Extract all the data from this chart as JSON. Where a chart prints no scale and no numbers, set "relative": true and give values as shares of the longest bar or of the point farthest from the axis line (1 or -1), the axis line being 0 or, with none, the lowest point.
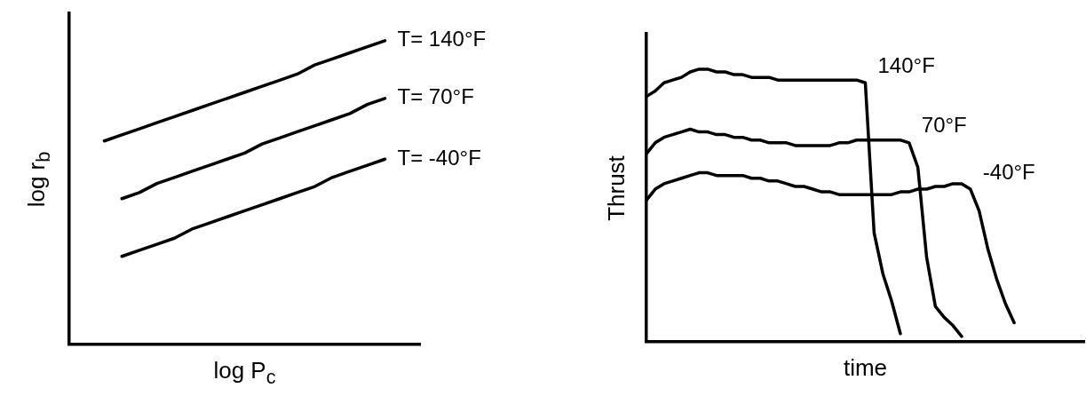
{
  "chart_data": [
    {
      "type": "line",
      "relative": true,
      "xlabel": "log P$_{c}$",
      "ylabel": "log r$_{b}$",
      "tick_labels": false,
      "grid": false,
      "legend": false,
      "marker": "none",
      "line_style": "solid",
      "categories": [
        null,
        null,
        null,
        null,
        null,
        null,
        null,
        null,
        null,
        null,
        null,
        null,
        null,
        null,
        null,
        null,
        null,
        null,
        null,
        null,
        null
      ],
      "series": [
        {
          "name": "T= 140°F",
          "color": "#000000",
          "values": [
            null,
            null,
            0.67,
            0.69,
            0.71,
            0.73,
            0.75,
            0.77,
            0.79,
            0.81,
            0.83,
            0.85,
            0.87,
            0.89,
            0.92,
            0.94,
            0.96,
            0.98,
            1.0,
            null,
            null
          ]
        },
        {
          "name": "T= 70°F",
          "color": "#000000",
          "values": [
            null,
            null,
            null,
            0.48,
            0.5,
            0.53,
            0.55,
            0.57,
            0.59,
            0.61,
            0.63,
            0.66,
            0.68,
            0.7,
            0.72,
            0.74,
            0.76,
            0.79,
            0.81,
            null,
            null
          ]
        },
        {
          "name": "T= -40°F",
          "color": "#000000",
          "values": [
            null,
            null,
            null,
            0.29,
            0.31,
            0.33,
            0.35,
            0.38,
            0.4,
            0.42,
            0.44,
            0.46,
            0.48,
            0.5,
            0.52,
            0.55,
            0.57,
            0.59,
            0.61,
            null,
            null
          ]
        }
      ]
    },
    {
      "type": "line",
      "relative": true,
      "xlabel": "time",
      "ylabel": "Thrust",
      "tick_labels": false,
      "grid": false,
      "legend": false,
      "marker": "none",
      "line_style": "solid",
      "categories": [
        null,
        null,
        null,
        null,
        null,
        null,
        null,
        null,
        null,
        null,
        null,
        null,
        null,
        null,
        null,
        null,
        null,
        null,
        null,
        null,
        null,
        null,
        null,
        null,
        null,
        null,
        null,
        null,
        null,
        null,
        null,
        null,
        null,
        null,
        null,
        null,
        null,
        null,
        null,
        null,
        null,
        null,
        null,
        null,
        null,
        null,
        null,
        null,
        null,
        null,
        null
      ],
      "series": [
        {
          "name": "140°F",
          "color": "#000000",
          "values": [
            0.9,
            0.92,
            0.95,
            0.96,
            0.97,
            0.99,
            1.0,
            1.0,
            0.99,
            0.99,
            0.98,
            0.98,
            0.97,
            0.97,
            0.97,
            0.96,
            0.96,
            0.96,
            0.96,
            0.96,
            0.96,
            0.96,
            0.96,
            0.96,
            0.96,
            0.95,
            0.4,
            0.25,
            0.15,
            0.03,
            null,
            null,
            null,
            null,
            null,
            null,
            null,
            null,
            null,
            null,
            null,
            null,
            null,
            null,
            null,
            null,
            null,
            null,
            null,
            null,
            null
          ]
        },
        {
          "name": "70°F",
          "color": "#000000",
          "values": [
            0.69,
            0.73,
            0.75,
            0.76,
            0.77,
            0.78,
            0.77,
            0.77,
            0.76,
            0.76,
            0.75,
            0.75,
            0.74,
            0.74,
            0.73,
            0.73,
            0.73,
            0.72,
            0.72,
            0.72,
            0.72,
            0.72,
            0.73,
            0.73,
            0.74,
            0.74,
            0.74,
            0.74,
            0.74,
            0.74,
            0.73,
            0.64,
            0.31,
            0.13,
            0.09,
            0.06,
            0.02,
            null,
            null,
            null,
            null,
            null,
            null,
            null,
            null,
            null,
            null,
            null,
            null,
            null,
            null
          ]
        },
        {
          "name": "-40°F",
          "color": "#000000",
          "values": [
            0.52,
            0.56,
            0.58,
            0.59,
            0.6,
            0.61,
            0.62,
            0.62,
            0.61,
            0.61,
            0.61,
            0.61,
            0.6,
            0.6,
            0.59,
            0.59,
            0.58,
            0.57,
            0.57,
            0.56,
            0.55,
            0.55,
            0.54,
            0.54,
            0.54,
            0.54,
            0.54,
            0.54,
            0.54,
            0.55,
            0.55,
            0.56,
            0.56,
            0.57,
            0.57,
            0.58,
            0.58,
            0.56,
            0.48,
            0.34,
            0.23,
            0.14,
            0.07,
            null,
            null,
            null,
            null,
            null,
            null,
            null,
            null
          ]
        }
      ]
    }
  ]
}
